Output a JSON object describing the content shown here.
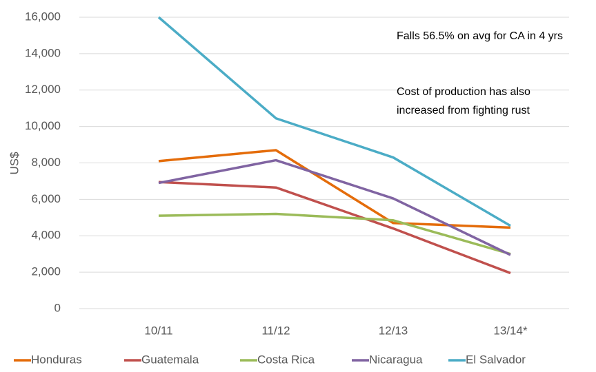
{
  "chart_data": {
    "type": "line",
    "ylabel": "US$",
    "annotations": [
      "Falls 56.5% on avg for CA in 4 yrs",
      "Cost of production has also increased from fighting rust"
    ],
    "categories": [
      "10/11",
      "11/12",
      "12/13",
      "13/14*"
    ],
    "series": [
      {
        "name": "Honduras",
        "color": "#e46c0a",
        "values": [
          8100,
          8700,
          4700,
          4450
        ]
      },
      {
        "name": "Guatemala",
        "color": "#c0504d",
        "values": [
          6950,
          6650,
          4400,
          1950
        ]
      },
      {
        "name": "Costa Rica",
        "color": "#9bbb59",
        "values": [
          5100,
          5200,
          4850,
          3000
        ]
      },
      {
        "name": "Nicaragua",
        "color": "#8064a2",
        "values": [
          6900,
          8150,
          6050,
          2950
        ]
      },
      {
        "name": "El Salvador",
        "color": "#4bacc6",
        "values": [
          16000,
          10450,
          8300,
          4550
        ]
      }
    ],
    "ylim": [
      0,
      16000
    ],
    "yticks": [
      0,
      {
        "value": 2000,
        "label": "2,000"
      },
      {
        "value": 4000,
        "label": "4,000"
      },
      {
        "value": 6000,
        "label": "6,000"
      },
      {
        "value": 8000,
        "label": "8,000"
      },
      {
        "value": 10000,
        "label": "10,000"
      },
      {
        "value": 12000,
        "label": "12,000"
      },
      {
        "value": 14000,
        "label": "14,000"
      },
      {
        "value": 16000,
        "label": "16,000"
      }
    ],
    "grid": true,
    "legend": "bottom"
  }
}
